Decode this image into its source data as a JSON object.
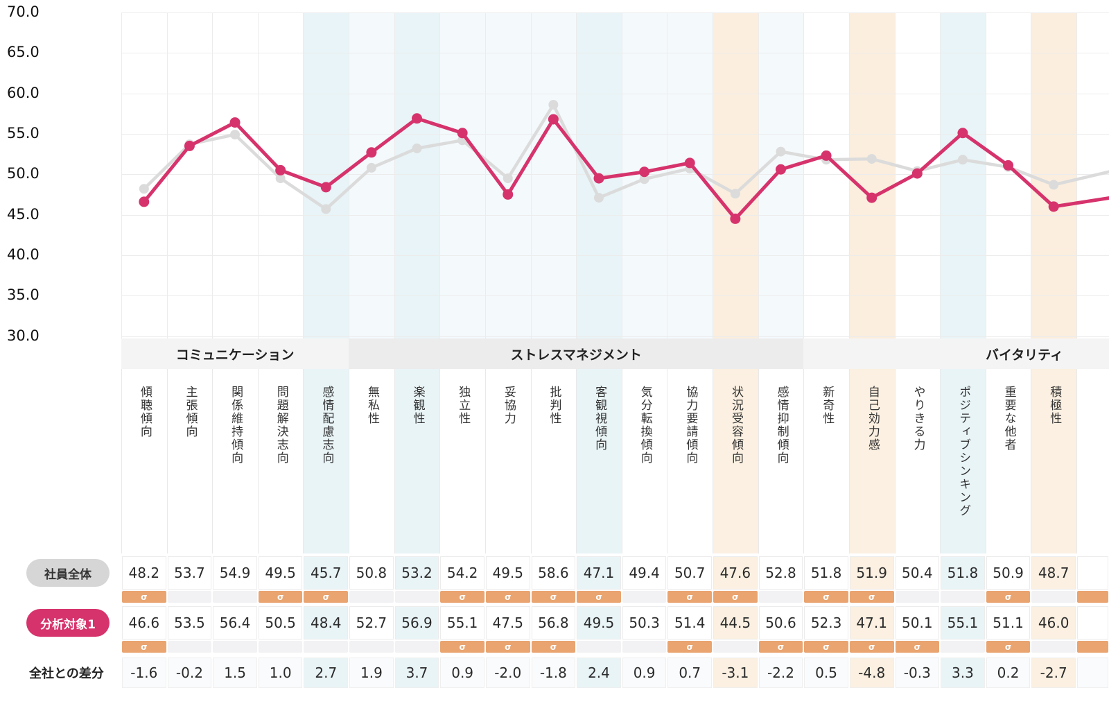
{
  "y_axis": {
    "labels": [
      "70.0",
      "65.0",
      "60.0",
      "55.0",
      "50.0",
      "45.0",
      "40.0",
      "35.0",
      "30.0"
    ],
    "min": 30,
    "max": 70,
    "step": 5
  },
  "groups": [
    {
      "label": "コミュニケーション",
      "span": 5
    },
    {
      "label": "ストレスマネジメント",
      "span": 10
    },
    {
      "label": "バイタリティ",
      "span": 6
    }
  ],
  "columns": [
    {
      "label": "傾聴傾向",
      "tint": "none"
    },
    {
      "label": "主張傾向",
      "tint": "none"
    },
    {
      "label": "関係維持傾向",
      "tint": "none"
    },
    {
      "label": "問題解決志向",
      "tint": "none"
    },
    {
      "label": "感情配慮志向",
      "tint": "blue"
    },
    {
      "label": "無私性",
      "tint": "faint"
    },
    {
      "label": "楽観性",
      "tint": "blue"
    },
    {
      "label": "独立性",
      "tint": "faint"
    },
    {
      "label": "妥協力",
      "tint": "faint"
    },
    {
      "label": "批判性",
      "tint": "faint"
    },
    {
      "label": "客観視傾向",
      "tint": "blue"
    },
    {
      "label": "気分転換傾向",
      "tint": "faint"
    },
    {
      "label": "協力要請傾向",
      "tint": "faint"
    },
    {
      "label": "状況受容傾向",
      "tint": "orange"
    },
    {
      "label": "感情抑制傾向",
      "tint": "faint"
    },
    {
      "label": "新奇性",
      "tint": "none"
    },
    {
      "label": "自己効力感",
      "tint": "orange"
    },
    {
      "label": "やりきる力",
      "tint": "none"
    },
    {
      "label": "ポジティブシンキング",
      "tint": "blue"
    },
    {
      "label": "重要な他者",
      "tint": "none"
    },
    {
      "label": "積極性",
      "tint": "orange"
    }
  ],
  "rows": {
    "overall": {
      "label": "社員全体",
      "values": [
        48.2,
        53.7,
        54.9,
        49.5,
        45.7,
        50.8,
        53.2,
        54.2,
        49.5,
        58.6,
        47.1,
        49.4,
        50.7,
        47.6,
        52.8,
        51.8,
        51.9,
        50.4,
        51.8,
        50.9,
        48.7
      ],
      "sigma": [
        1,
        0,
        0,
        1,
        1,
        0,
        0,
        1,
        1,
        1,
        1,
        0,
        1,
        1,
        0,
        1,
        1,
        0,
        0,
        1,
        0
      ]
    },
    "target": {
      "label": "分析対象1",
      "values": [
        46.6,
        53.5,
        56.4,
        50.5,
        48.4,
        52.7,
        56.9,
        55.1,
        47.5,
        56.8,
        49.5,
        50.3,
        51.4,
        44.5,
        50.6,
        52.3,
        47.1,
        50.1,
        55.1,
        51.1,
        46.0
      ],
      "sigma": [
        1,
        0,
        0,
        0,
        0,
        0,
        0,
        1,
        1,
        1,
        0,
        0,
        1,
        0,
        1,
        1,
        1,
        1,
        0,
        1,
        0
      ]
    },
    "diff": {
      "label": "全社との差分",
      "values": [
        -1.6,
        -0.2,
        1.5,
        1.0,
        2.7,
        1.9,
        3.7,
        0.9,
        -2.0,
        -1.8,
        2.4,
        0.9,
        0.7,
        -3.1,
        -2.2,
        0.5,
        -4.8,
        -0.3,
        3.3,
        0.2,
        -2.7
      ]
    }
  },
  "sigma_symbol": "σ",
  "edge_column": {
    "visible": true,
    "sigma_overall": true,
    "sigma_target": true
  },
  "chart_data": {
    "type": "line",
    "categories": [
      "傾聴傾向",
      "主張傾向",
      "関係維持傾向",
      "問題解決志向",
      "感情配慮志向",
      "無私性",
      "楽観性",
      "独立性",
      "妥協力",
      "批判性",
      "客観視傾向",
      "気分転換傾向",
      "協力要請傾向",
      "状況受容傾向",
      "感情抑制傾向",
      "新奇性",
      "自己効力感",
      "やりきる力",
      "ポジティブシンキング",
      "重要な他者",
      "積極性"
    ],
    "series": [
      {
        "name": "社員全体",
        "color": "#dbdbdb",
        "values": [
          48.2,
          53.7,
          54.9,
          49.5,
          45.7,
          50.8,
          53.2,
          54.2,
          49.5,
          58.6,
          47.1,
          49.4,
          50.7,
          47.6,
          52.8,
          51.8,
          51.9,
          50.4,
          51.8,
          50.9,
          48.7
        ]
      },
      {
        "name": "分析対象1",
        "color": "#d6336c",
        "values": [
          46.6,
          53.5,
          56.4,
          50.5,
          48.4,
          52.7,
          56.9,
          55.1,
          47.5,
          56.8,
          49.5,
          50.3,
          51.4,
          44.5,
          50.6,
          52.3,
          47.1,
          50.1,
          55.1,
          51.1,
          46.0
        ]
      }
    ],
    "ylim": [
      30,
      70
    ],
    "ytick_step": 5,
    "grid": true,
    "legend_position": "left-table-rows",
    "offscreen_right": {
      "社員全体": 50.8,
      "分析対象1": 47.4
    }
  },
  "colors": {
    "accent_pink": "#d6336c",
    "series_gray": "#dbdbdb",
    "sigma_orange": "#e9a470",
    "tint_blue": "#e8f4f7",
    "tint_faint": "#f4f9fc",
    "tint_orange": "#fbeede",
    "grid": "#ececec"
  }
}
